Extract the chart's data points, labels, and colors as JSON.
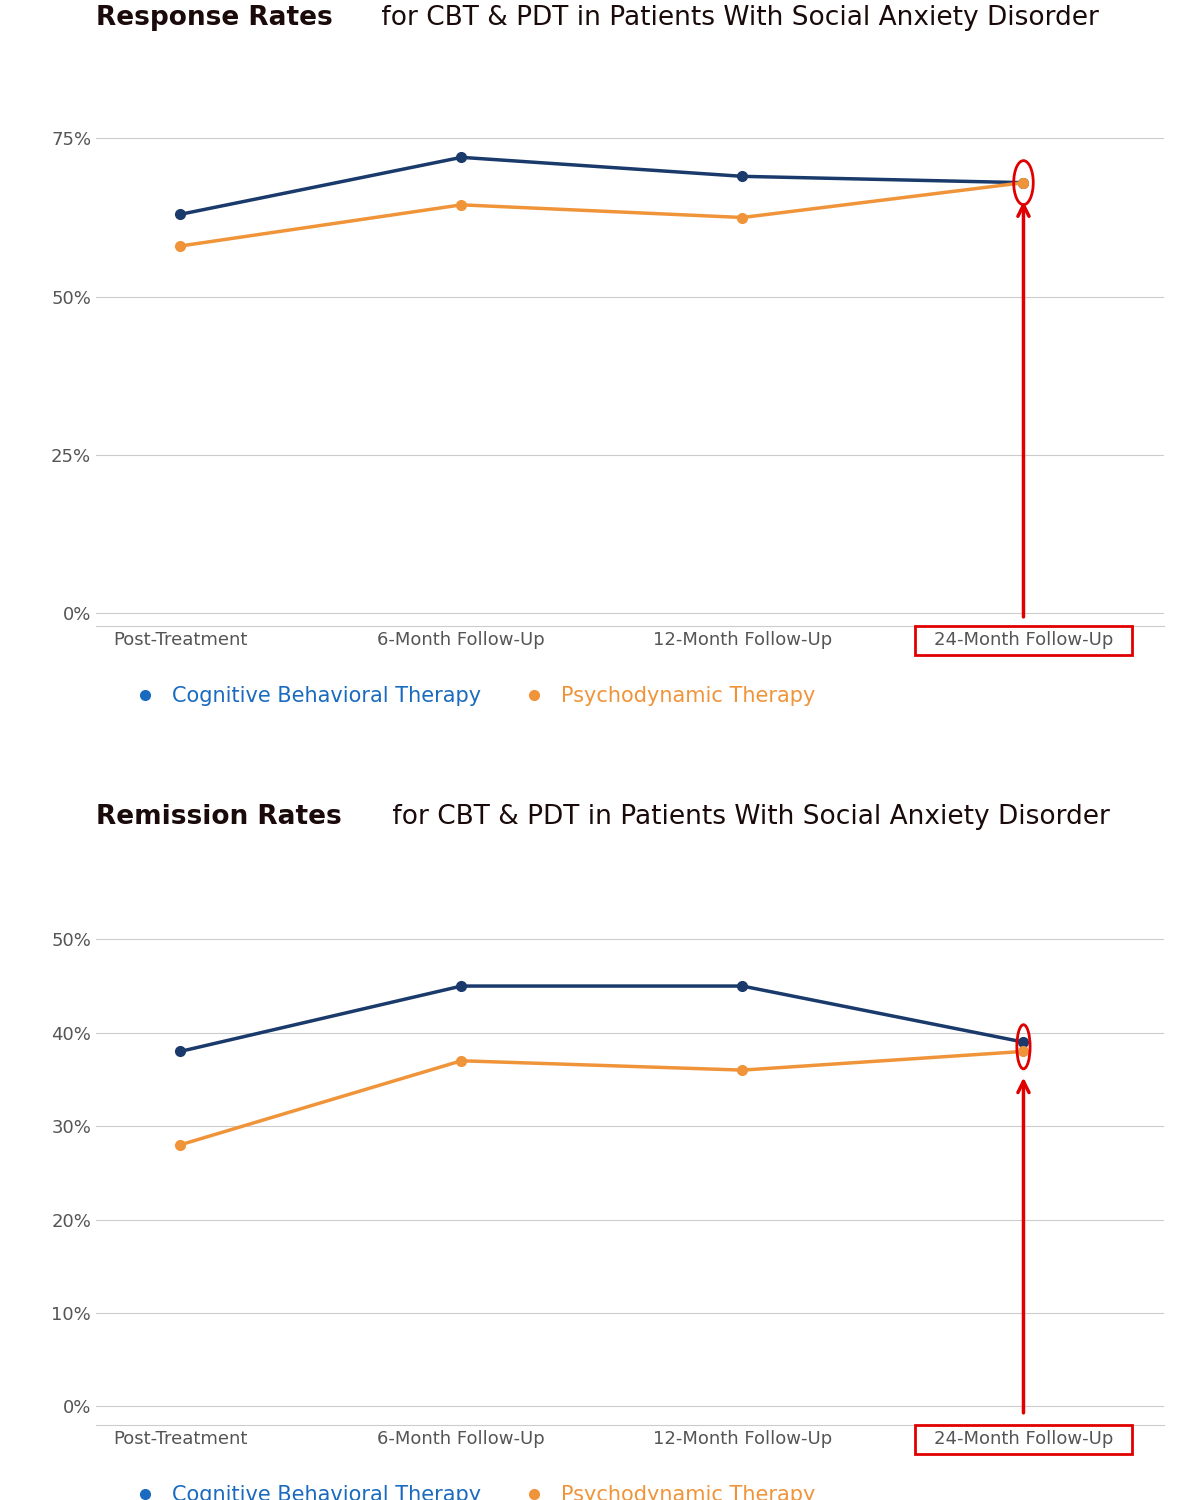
{
  "chart1": {
    "title_bold": "Response Rates",
    "title_rest": " for CBT & PDT in Patients With Social Anxiety Disorder",
    "x_labels": [
      "Post-Treatment",
      "6-Month Follow-Up",
      "12-Month Follow-Up",
      "24-Month Follow-Up"
    ],
    "cbt_values": [
      0.63,
      0.72,
      0.69,
      0.68
    ],
    "pdt_values": [
      0.58,
      0.645,
      0.625,
      0.68
    ],
    "yticks": [
      0.0,
      0.25,
      0.5,
      0.75
    ],
    "ytick_labels": [
      "0%",
      "25%",
      "50%",
      "75%"
    ],
    "ylim": [
      -0.02,
      0.85
    ]
  },
  "chart2": {
    "title_bold": "Remission Rates",
    "title_rest": " for CBT & PDT in Patients With Social Anxiety Disorder",
    "x_labels": [
      "Post-Treatment",
      "6-Month Follow-Up",
      "12-Month Follow-Up",
      "24-Month Follow-Up"
    ],
    "cbt_values": [
      0.38,
      0.45,
      0.45,
      0.39
    ],
    "pdt_values": [
      0.28,
      0.37,
      0.36,
      0.38
    ],
    "yticks": [
      0.0,
      0.1,
      0.2,
      0.3,
      0.4,
      0.5
    ],
    "ytick_labels": [
      "0%",
      "10%",
      "20%",
      "30%",
      "40%",
      "50%"
    ],
    "ylim": [
      -0.02,
      0.57
    ]
  },
  "cbt_color": "#1a3a6b",
  "pdt_color": "#f0943a",
  "arrow_color": "#e00000",
  "circle_color": "#e00000",
  "grid_color": "#cccccc",
  "tick_color": "#555555",
  "title_bold_color": "#1a0a0a",
  "title_rest_color": "#1a0a0a",
  "legend_cbt_color": "#1a6bbf",
  "legend_pdt_color": "#f0943a",
  "box_color": "#e00000",
  "line_width": 2.5,
  "marker_size": 7,
  "figsize": [
    12,
    15
  ]
}
